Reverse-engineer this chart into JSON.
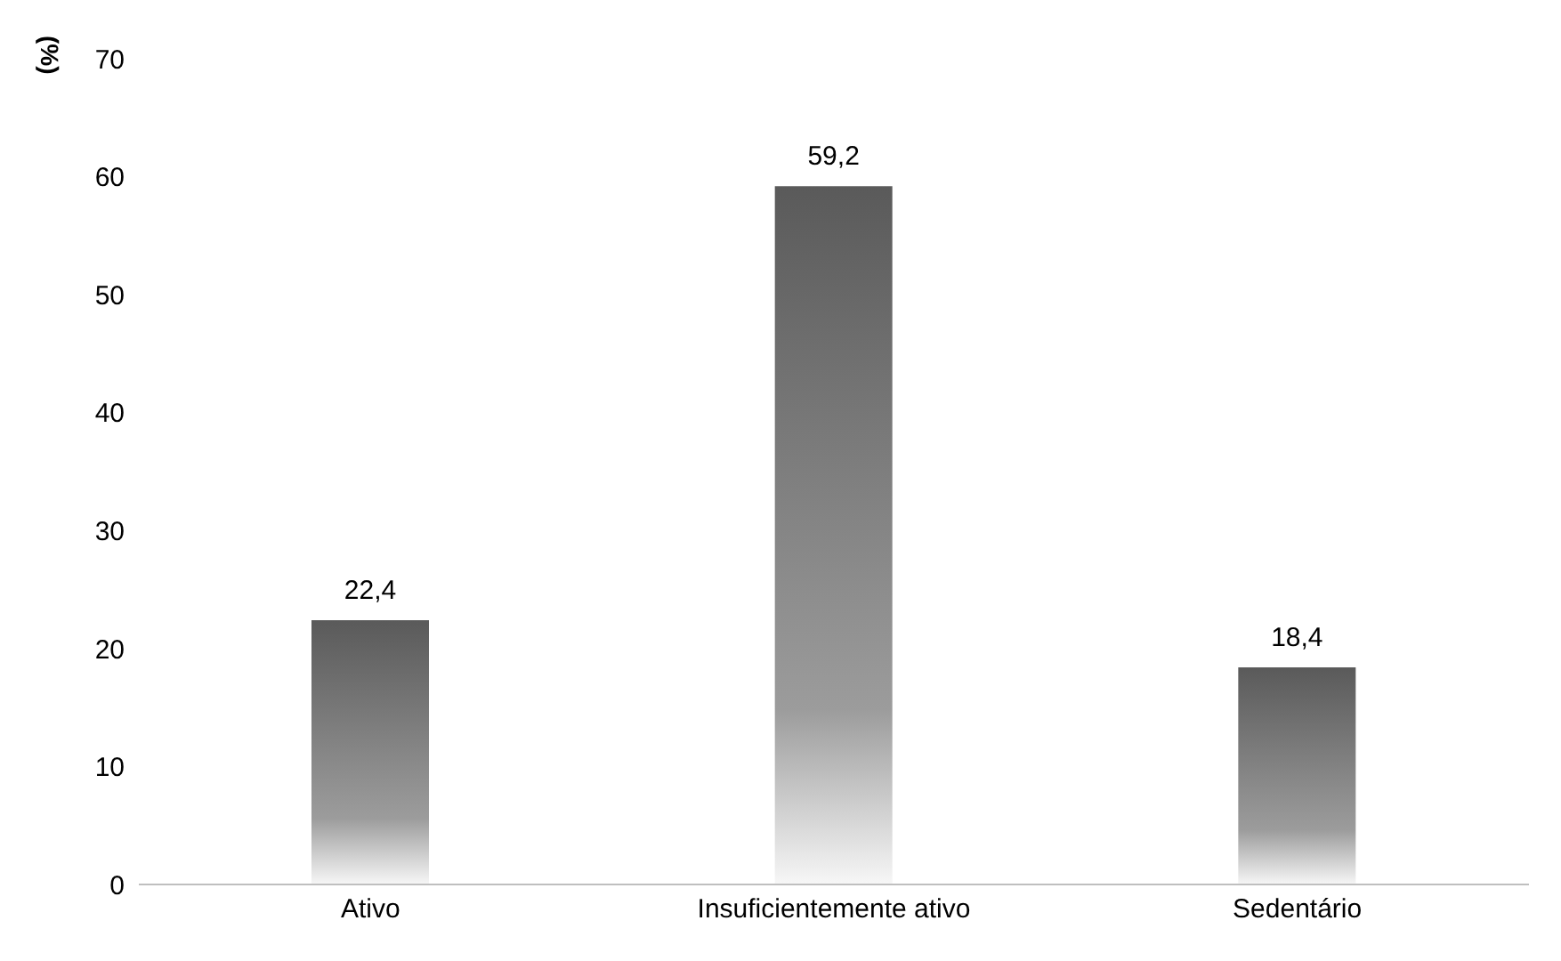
{
  "chart_data": {
    "type": "bar",
    "ylabel": "(%)",
    "categories": [
      "Ativo",
      "Insuficientemente ativo",
      "Sedentário"
    ],
    "values": [
      22.4,
      59.2,
      18.4
    ],
    "value_labels": [
      "22,4",
      "59,2",
      "18,4"
    ],
    "color": "#5a5a5a",
    "ylim": [
      0,
      70
    ],
    "yticks": [
      0,
      10,
      20,
      30,
      40,
      50,
      60,
      70
    ],
    "grid": false,
    "legend": false
  }
}
